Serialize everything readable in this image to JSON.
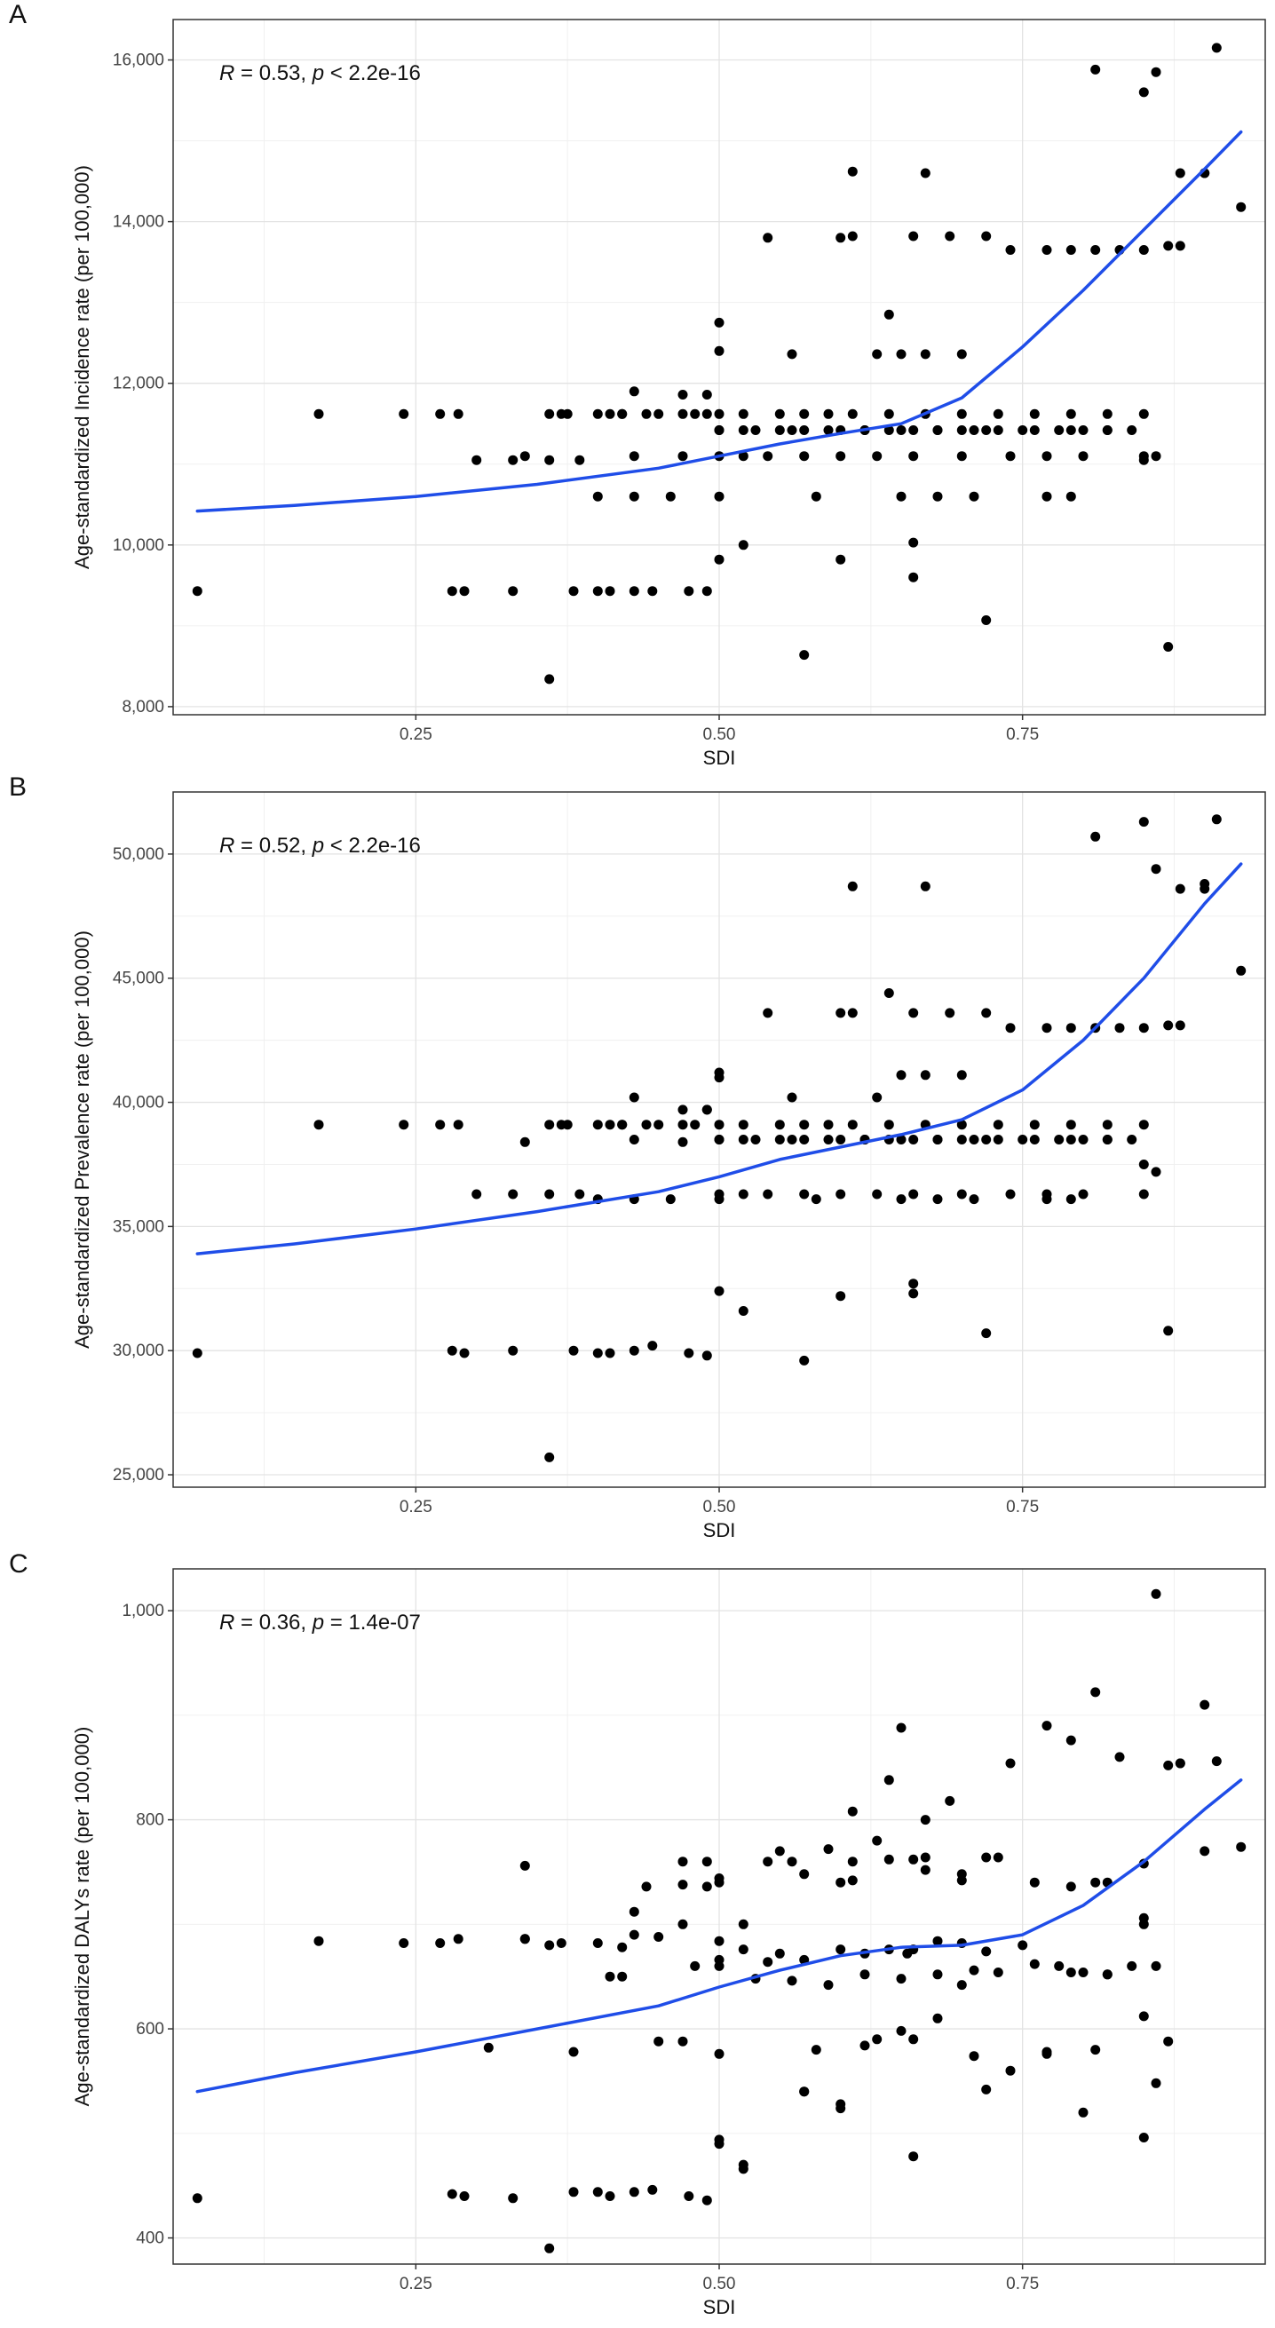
{
  "figure": {
    "panel_labels": [
      "A",
      "B",
      "C"
    ]
  },
  "chart_data": [
    {
      "type": "scatter",
      "panel": "A",
      "annotation": {
        "r_label": "R",
        "r_text": " = 0.53, ",
        "p_label": "p",
        "p_text": " < 2.2e-16"
      },
      "xlabel": "SDI",
      "ylabel": "Age-standardized Incidence rate (per 100,000)",
      "xlim": [
        0.05,
        0.95
      ],
      "ylim": [
        7900,
        16500
      ],
      "xticks": [
        0.25,
        0.5,
        0.75
      ],
      "xtick_labels": [
        "0.25",
        "0.50",
        "0.75"
      ],
      "yticks": [
        8000,
        10000,
        12000,
        14000,
        16000
      ],
      "ytick_labels": [
        "8,000",
        "10,000",
        "12,000",
        "14,000",
        "16,000"
      ],
      "smooth_color": "#1f4de8",
      "smooth": {
        "x": [
          0.07,
          0.15,
          0.25,
          0.35,
          0.45,
          0.5,
          0.55,
          0.6,
          0.65,
          0.7,
          0.75,
          0.8,
          0.85,
          0.9,
          0.93
        ],
        "y": [
          10420,
          10490,
          10600,
          10750,
          10950,
          11100,
          11250,
          11380,
          11500,
          11820,
          12450,
          13150,
          13900,
          14650,
          15110
        ]
      },
      "points": {
        "x": [
          0.07,
          0.17,
          0.24,
          0.27,
          0.285,
          0.36,
          0.375,
          0.37,
          0.4,
          0.42,
          0.43,
          0.45,
          0.47,
          0.49,
          0.5,
          0.52,
          0.55,
          0.57,
          0.6,
          0.62,
          0.64,
          0.66,
          0.68,
          0.7,
          0.72,
          0.75,
          0.78,
          0.8,
          0.82,
          0.84,
          0.86,
          0.88,
          0.9,
          0.91,
          0.93,
          0.61,
          0.66,
          0.69,
          0.72,
          0.74,
          0.77,
          0.79,
          0.81,
          0.83,
          0.85,
          0.87,
          0.88,
          0.5,
          0.53,
          0.56,
          0.59,
          0.62,
          0.65,
          0.68,
          0.71,
          0.73,
          0.76,
          0.79,
          0.82,
          0.5,
          0.52,
          0.54,
          0.57,
          0.6,
          0.63,
          0.66,
          0.7,
          0.74,
          0.77,
          0.8,
          0.85,
          0.41,
          0.42,
          0.44,
          0.47,
          0.48,
          0.5,
          0.52,
          0.55,
          0.57,
          0.59,
          0.61,
          0.64,
          0.67,
          0.7,
          0.73,
          0.76,
          0.79,
          0.82,
          0.85,
          0.3,
          0.33,
          0.36,
          0.385,
          0.4,
          0.43,
          0.46,
          0.5,
          0.58,
          0.65,
          0.68,
          0.71,
          0.77,
          0.79,
          0.85,
          0.28,
          0.29,
          0.33,
          0.38,
          0.4,
          0.41,
          0.43,
          0.445,
          0.475,
          0.49,
          0.5,
          0.52,
          0.6,
          0.66,
          0.36,
          0.57,
          0.72,
          0.87,
          0.66,
          0.64,
          0.65,
          0.67,
          0.7,
          0.5,
          0.5,
          0.54,
          0.6,
          0.56,
          0.63,
          0.34,
          0.43,
          0.47,
          0.49,
          0.81,
          0.86,
          0.9,
          0.85,
          0.61,
          0.67
        ],
        "y": [
          9430,
          11620,
          11620,
          11620,
          11620,
          11620,
          11620,
          11620,
          11620,
          11620,
          11900,
          11620,
          11860,
          11860,
          11420,
          11420,
          11420,
          11420,
          11420,
          11420,
          11420,
          11420,
          11420,
          11420,
          11420,
          11420,
          11420,
          11420,
          11420,
          11420,
          11100,
          14600,
          14600,
          16150,
          14180,
          13820,
          13820,
          13820,
          13820,
          13650,
          13650,
          13650,
          13650,
          13650,
          13650,
          13700,
          13700,
          11420,
          11420,
          11420,
          11420,
          11420,
          11420,
          11420,
          11420,
          11420,
          11420,
          11420,
          11420,
          11100,
          11100,
          11100,
          11100,
          11100,
          11100,
          11100,
          11100,
          11100,
          11100,
          11100,
          11100,
          11620,
          11620,
          11620,
          11620,
          11620,
          11620,
          11620,
          11620,
          11620,
          11620,
          11620,
          11620,
          11620,
          11620,
          11620,
          11620,
          11620,
          11620,
          11620,
          11050,
          11050,
          11050,
          11050,
          10600,
          10600,
          10600,
          10600,
          10600,
          10600,
          10600,
          10600,
          10600,
          10600,
          11050,
          9430,
          9430,
          9430,
          9430,
          9430,
          9430,
          9430,
          9430,
          9430,
          9430,
          9820,
          10000,
          9820,
          9600,
          8340,
          8640,
          9070,
          8740,
          10030,
          12850,
          12360,
          12360,
          12360,
          12400,
          12750,
          13800,
          13800,
          12360,
          12360,
          11100,
          11100,
          11100,
          11620,
          15880,
          15850,
          14600,
          15600,
          14620,
          14600
        ]
      }
    },
    {
      "type": "scatter",
      "panel": "B",
      "annotation": {
        "r_label": "R",
        "r_text": " = 0.52, ",
        "p_label": "p",
        "p_text": " < 2.2e-16"
      },
      "xlabel": "SDI",
      "ylabel": "Age-standardized Prevalence rate (per 100,000)",
      "xlim": [
        0.05,
        0.95
      ],
      "ylim": [
        24500,
        52500
      ],
      "xticks": [
        0.25,
        0.5,
        0.75
      ],
      "xtick_labels": [
        "0.25",
        "0.50",
        "0.75"
      ],
      "yticks": [
        25000,
        30000,
        35000,
        40000,
        45000,
        50000
      ],
      "ytick_labels": [
        "25,000",
        "30,000",
        "35,000",
        "40,000",
        "45,000",
        "50,000"
      ],
      "smooth_color": "#1f4de8",
      "smooth": {
        "x": [
          0.07,
          0.15,
          0.25,
          0.35,
          0.45,
          0.5,
          0.55,
          0.6,
          0.65,
          0.7,
          0.75,
          0.8,
          0.85,
          0.9,
          0.93
        ],
        "y": [
          33900,
          34300,
          34900,
          35600,
          36400,
          37000,
          37700,
          38200,
          38700,
          39300,
          40500,
          42500,
          45000,
          48000,
          49600
        ]
      },
      "points": {
        "x": [
          0.07,
          0.17,
          0.24,
          0.27,
          0.285,
          0.36,
          0.375,
          0.37,
          0.4,
          0.42,
          0.43,
          0.45,
          0.47,
          0.49,
          0.5,
          0.52,
          0.55,
          0.57,
          0.6,
          0.62,
          0.64,
          0.66,
          0.68,
          0.7,
          0.72,
          0.75,
          0.78,
          0.8,
          0.82,
          0.84,
          0.86,
          0.88,
          0.9,
          0.91,
          0.93,
          0.61,
          0.66,
          0.69,
          0.72,
          0.74,
          0.77,
          0.79,
          0.81,
          0.83,
          0.85,
          0.87,
          0.88,
          0.5,
          0.53,
          0.56,
          0.59,
          0.62,
          0.65,
          0.68,
          0.71,
          0.73,
          0.76,
          0.79,
          0.82,
          0.5,
          0.52,
          0.54,
          0.57,
          0.6,
          0.63,
          0.66,
          0.7,
          0.74,
          0.77,
          0.8,
          0.85,
          0.41,
          0.42,
          0.44,
          0.47,
          0.48,
          0.5,
          0.52,
          0.55,
          0.57,
          0.59,
          0.61,
          0.64,
          0.67,
          0.7,
          0.73,
          0.76,
          0.79,
          0.82,
          0.85,
          0.3,
          0.33,
          0.36,
          0.385,
          0.4,
          0.43,
          0.46,
          0.5,
          0.58,
          0.65,
          0.68,
          0.71,
          0.77,
          0.79,
          0.85,
          0.28,
          0.29,
          0.33,
          0.38,
          0.4,
          0.41,
          0.43,
          0.445,
          0.475,
          0.49,
          0.5,
          0.52,
          0.6,
          0.66,
          0.36,
          0.57,
          0.72,
          0.87,
          0.66,
          0.64,
          0.65,
          0.67,
          0.7,
          0.5,
          0.5,
          0.54,
          0.6,
          0.56,
          0.63,
          0.34,
          0.43,
          0.47,
          0.49,
          0.81,
          0.86,
          0.9,
          0.85,
          0.61,
          0.67
        ],
        "y": [
          29900,
          39100,
          39100,
          39100,
          39100,
          39100,
          39100,
          39100,
          39100,
          39100,
          40200,
          39100,
          39700,
          39700,
          38500,
          38500,
          38500,
          38500,
          38500,
          38500,
          38500,
          38500,
          38500,
          38500,
          38500,
          38500,
          38500,
          38500,
          38500,
          38500,
          37200,
          48600,
          48600,
          51400,
          45300,
          43600,
          43600,
          43600,
          43600,
          43000,
          43000,
          43000,
          43000,
          43000,
          43000,
          43100,
          43100,
          38500,
          38500,
          38500,
          38500,
          38500,
          38500,
          38500,
          38500,
          38500,
          38500,
          38500,
          38500,
          36300,
          36300,
          36300,
          36300,
          36300,
          36300,
          36300,
          36300,
          36300,
          36300,
          36300,
          36300,
          39100,
          39100,
          39100,
          39100,
          39100,
          39100,
          39100,
          39100,
          39100,
          39100,
          39100,
          39100,
          39100,
          39100,
          39100,
          39100,
          39100,
          39100,
          39100,
          36300,
          36300,
          36300,
          36300,
          36100,
          36100,
          36100,
          36100,
          36100,
          36100,
          36100,
          36100,
          36100,
          36100,
          37500,
          30000,
          29900,
          30000,
          30000,
          29900,
          29900,
          30000,
          30200,
          29900,
          29800,
          32400,
          31600,
          32200,
          32300,
          25700,
          29600,
          30700,
          30800,
          32700,
          44400,
          41100,
          41100,
          41100,
          41000,
          41200,
          43600,
          43600,
          40200,
          40200,
          38400,
          38500,
          38400,
          39700,
          50700,
          49400,
          48800,
          51300,
          48700,
          48700
        ]
      }
    },
    {
      "type": "scatter",
      "panel": "C",
      "annotation": {
        "r_label": "R",
        "r_text": " = 0.36, ",
        "p_label": "p",
        "p_text": " = 1.4e-07"
      },
      "xlabel": "SDI",
      "ylabel": "Age-standardized DALYs rate (per 100,000)",
      "xlim": [
        0.05,
        0.95
      ],
      "ylim": [
        375,
        1040
      ],
      "xticks": [
        0.25,
        0.5,
        0.75
      ],
      "xtick_labels": [
        "0.25",
        "0.50",
        "0.75"
      ],
      "yticks": [
        400,
        600,
        800,
        1000
      ],
      "ytick_labels": [
        "400",
        "600",
        "800",
        "1,000"
      ],
      "smooth_color": "#1f4de8",
      "smooth": {
        "x": [
          0.07,
          0.15,
          0.25,
          0.35,
          0.45,
          0.5,
          0.55,
          0.6,
          0.65,
          0.7,
          0.75,
          0.8,
          0.85,
          0.9,
          0.93
        ],
        "y": [
          540,
          558,
          578,
          600,
          622,
          640,
          656,
          670,
          678,
          680,
          690,
          718,
          760,
          810,
          838
        ]
      },
      "points": {
        "x": [
          0.07,
          0.17,
          0.24,
          0.27,
          0.285,
          0.34,
          0.36,
          0.37,
          0.4,
          0.42,
          0.43,
          0.45,
          0.47,
          0.49,
          0.5,
          0.52,
          0.55,
          0.57,
          0.6,
          0.62,
          0.64,
          0.66,
          0.68,
          0.7,
          0.72,
          0.75,
          0.78,
          0.8,
          0.82,
          0.84,
          0.86,
          0.88,
          0.9,
          0.91,
          0.93,
          0.61,
          0.66,
          0.69,
          0.72,
          0.74,
          0.77,
          0.79,
          0.81,
          0.83,
          0.85,
          0.87,
          0.88,
          0.5,
          0.53,
          0.56,
          0.59,
          0.62,
          0.65,
          0.68,
          0.71,
          0.73,
          0.76,
          0.79,
          0.82,
          0.5,
          0.52,
          0.54,
          0.57,
          0.6,
          0.63,
          0.66,
          0.7,
          0.74,
          0.77,
          0.8,
          0.85,
          0.41,
          0.42,
          0.44,
          0.47,
          0.48,
          0.5,
          0.52,
          0.55,
          0.57,
          0.59,
          0.61,
          0.64,
          0.67,
          0.7,
          0.73,
          0.76,
          0.79,
          0.82,
          0.85,
          0.31,
          0.34,
          0.38,
          0.45,
          0.47,
          0.5,
          0.58,
          0.62,
          0.65,
          0.68,
          0.71,
          0.77,
          0.81,
          0.85,
          0.86,
          0.28,
          0.29,
          0.33,
          0.38,
          0.4,
          0.41,
          0.43,
          0.445,
          0.475,
          0.49,
          0.5,
          0.52,
          0.6,
          0.66,
          0.36,
          0.57,
          0.72,
          0.87,
          0.655,
          0.64,
          0.65,
          0.67,
          0.7,
          0.5,
          0.5,
          0.54,
          0.6,
          0.56,
          0.63,
          0.34,
          0.43,
          0.47,
          0.49,
          0.81,
          0.86,
          0.9,
          0.85,
          0.61,
          0.67
        ],
        "y": [
          438,
          684,
          682,
          682,
          686,
          686,
          680,
          682,
          682,
          678,
          712,
          688,
          738,
          736,
          684,
          676,
          672,
          666,
          676,
          672,
          676,
          676,
          684,
          682,
          674,
          680,
          660,
          654,
          652,
          660,
          660,
          854,
          910,
          856,
          774,
          808,
          762,
          818,
          764,
          854,
          890,
          876,
          922,
          860,
          706,
          852,
          854,
          660,
          648,
          646,
          642,
          652,
          648,
          652,
          656,
          654,
          662,
          654,
          652,
          490,
          466,
          664,
          540,
          528,
          590,
          590,
          642,
          560,
          578,
          520,
          496,
          650,
          650,
          736,
          700,
          660,
          666,
          700,
          770,
          748,
          772,
          760,
          762,
          752,
          742,
          764,
          740,
          736,
          740,
          700,
          582,
          756,
          578,
          588,
          588,
          576,
          580,
          584,
          598,
          610,
          574,
          576,
          580,
          612,
          548,
          442,
          440,
          438,
          444,
          444,
          440,
          444,
          446,
          440,
          436,
          494,
          470,
          524,
          478,
          390,
          540,
          542,
          588,
          672,
          838,
          888,
          800,
          748,
          744,
          740,
          760,
          740,
          760,
          780,
          686,
          690,
          760,
          760,
          740,
          1016,
          770,
          758,
          742,
          764
        ]
      }
    }
  ]
}
